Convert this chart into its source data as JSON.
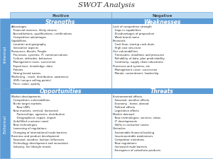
{
  "title": "SWOT Analysis",
  "col_headers": [
    "Positive",
    "Negative"
  ],
  "row_headers": [
    "Internal",
    "External"
  ],
  "quadrant_titles": [
    "Strengths",
    "Weaknesses",
    "Opportunities",
    "Threats"
  ],
  "header_bg": "#5b9bd5",
  "header_text_color": "#ffffff",
  "col_header_bg": "#b8d9f0",
  "col_header_text": "#000000",
  "row_header_bg": "#5b9bd5",
  "row_header_text": "#ffffff",
  "cell_bg": "#ffffff",
  "border_color": "#5b9bd5",
  "title_fontsize": 7.5,
  "col_header_fontsize": 4.5,
  "row_header_fontsize": 4.5,
  "content_fontsize": 2.7,
  "quadrant_title_fontsize": 5.5,
  "strengths_content": "Advantages\n  Financial reserves, likely returns\n  Accreditations, qualifications, certifications\n  Competitive advantages\nCapabilities\n  Location and geography\n  Innovative aspects\nResources, Assets, People\n  Processes, systems, IT, communications\n  Culture, attitudes, behaviors\n  Management cover, succession\n  Experience, knowledge, data\n  Patents\n  Strong brand names\nMarketing - reach, distribution, awareness\n  USPs (unique selling points)\n  Price, value, quality",
  "weaknesses_content": "Lack of competitive strength\n  Gaps in capabilities\n  Disadvantages of proposition\n  Weak brand name\nFinancials\n  Cash flow, startup cash-drain\n  High cost structure\nOur vulnerabilities\n  Timescales, deadlines and pressures\n  Reliability of data, plan predictability\n  Continuity, supply chain robustness\nProcesses and systems, etc\n  Management cover, succession\n  Morale, commitment, leadership",
  "opportunities_content": "Market developments\n  Competitors vulnerabilities\n  Niche target markets\n      New USPs\n  New markets, vertical, horizontal\n      Partnerships, agencies, distribution\n      Geographical, export, import\n  Unfulfilled customer need\n  New technologies\n  Loosening of regulations\n  Changing of international trade barriers\nBusiness and product development\n  Seasonal, weather, fashion influences\n  Technology development and innovation\n  Industry, for lifestyle trends",
  "threats_content": "Environmental effects\n  Seasonal, weather effects\n  Economy - home, abroad\n  Political effects\n  Legislative effects\nMarket demand\n  New technologies, services, ideas\n  IT developments\n  Shifts in consumer tastes\nObstacles\n  Sustainable financial backing\n  Insurmountable weaknesses\n  Competitor intentions\n  New regulations\n  Increased trade barriers\n  Emergence of substitute products"
}
